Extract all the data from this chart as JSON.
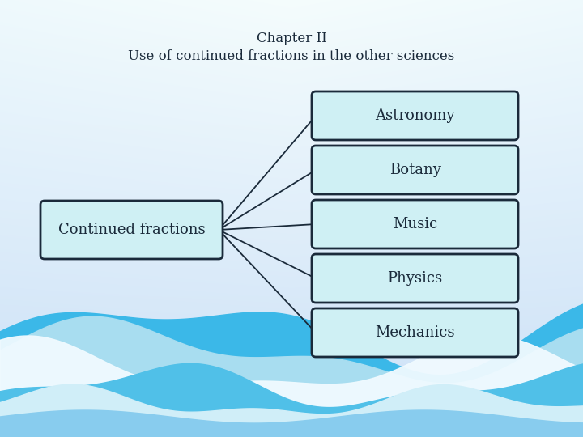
{
  "title_line1": "Chapter II",
  "title_line2": "Use of continued fractions in the other sciences",
  "left_box_label": "Continued fractions",
  "right_boxes": [
    "Astronomy",
    "Botany",
    "Music",
    "Physics",
    "Mechanics"
  ],
  "box_facecolor": "#cff0f4",
  "box_edgecolor": "#1a2a3a",
  "title_color": "#1a2a3a",
  "text_color": "#1a2a3a",
  "title_fontsize": 12,
  "label_fontsize": 13,
  "bg_top": "#eaf4fb",
  "bg_mid": "#f5fbff",
  "bg_bottom": "#c8e8f5",
  "wave1_color": "#3bb8e8",
  "wave2_color": "#78cce8",
  "wave3_color": "#f0faff",
  "wave4_color": "#50c0e8",
  "wave5_color": "#a8ddf0"
}
